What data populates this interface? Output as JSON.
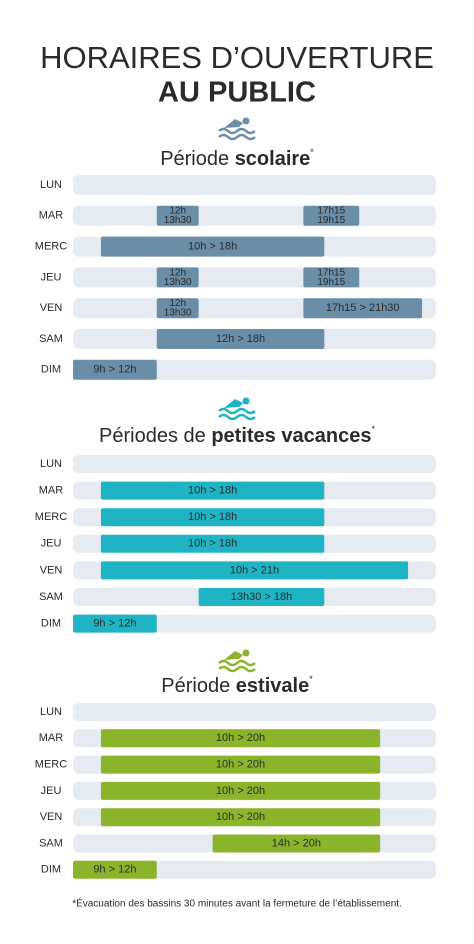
{
  "header": {
    "line1": "HORAIRES D’OUVERTURE",
    "line2": "AU PUBLIC"
  },
  "xlim": [
    9,
    22
  ],
  "sections": [
    {
      "title_light": "Période",
      "title_bold": "scolaire",
      "title_mark": "*",
      "color": "#6b8ea8",
      "rows": [
        {
          "day": "LUN",
          "ranges": []
        },
        {
          "day": "MAR",
          "ranges": [
            {
              "start": 12,
              "end": 13.5,
              "label": [
                "12h",
                "13h30"
              ]
            },
            {
              "start": 17.25,
              "end": 19.25,
              "label": [
                "17h15",
                "19h15"
              ]
            }
          ]
        },
        {
          "day": "MERC",
          "ranges": [
            {
              "start": 10,
              "end": 18,
              "label": [
                "10h > 18h"
              ]
            }
          ]
        },
        {
          "day": "JEU",
          "ranges": [
            {
              "start": 12,
              "end": 13.5,
              "label": [
                "12h",
                "13h30"
              ]
            },
            {
              "start": 17.25,
              "end": 19.25,
              "label": [
                "17h15",
                "19h15"
              ]
            }
          ]
        },
        {
          "day": "VEN",
          "ranges": [
            {
              "start": 12,
              "end": 13.5,
              "label": [
                "12h",
                "13h30"
              ]
            },
            {
              "start": 17.25,
              "end": 21.5,
              "label": [
                "17h15 > 21h30"
              ]
            }
          ]
        },
        {
          "day": "SAM",
          "ranges": [
            {
              "start": 12,
              "end": 18,
              "label": [
                "12h > 18h"
              ]
            }
          ]
        },
        {
          "day": "DIM",
          "ranges": [
            {
              "start": 9,
              "end": 12,
              "label": [
                "9h > 12h"
              ]
            }
          ]
        }
      ]
    },
    {
      "title_light": "Périodes de",
      "title_bold": "petites vacances",
      "title_mark": "*",
      "color": "#1eb4c4",
      "rows": [
        {
          "day": "LUN",
          "ranges": []
        },
        {
          "day": "MAR",
          "ranges": [
            {
              "start": 10,
              "end": 18,
              "label": [
                "10h > 18h"
              ]
            }
          ]
        },
        {
          "day": "MERC",
          "ranges": [
            {
              "start": 10,
              "end": 18,
              "label": [
                "10h > 18h"
              ]
            }
          ]
        },
        {
          "day": "JEU",
          "ranges": [
            {
              "start": 10,
              "end": 18,
              "label": [
                "10h > 18h"
              ]
            }
          ]
        },
        {
          "day": "VEN",
          "ranges": [
            {
              "start": 10,
              "end": 21,
              "label": [
                "10h > 21h"
              ]
            }
          ]
        },
        {
          "day": "SAM",
          "ranges": [
            {
              "start": 13.5,
              "end": 18,
              "label": [
                "13h30 > 18h"
              ]
            }
          ]
        },
        {
          "day": "DIM",
          "ranges": [
            {
              "start": 9,
              "end": 12,
              "label": [
                "9h > 12h"
              ]
            }
          ]
        }
      ]
    },
    {
      "title_light": "Période",
      "title_bold": "estivale",
      "title_mark": "*",
      "color": "#8cb42b",
      "rows": [
        {
          "day": "LUN",
          "ranges": []
        },
        {
          "day": "MAR",
          "ranges": [
            {
              "start": 10,
              "end": 20,
              "label": [
                "10h > 20h"
              ]
            }
          ]
        },
        {
          "day": "MERC",
          "ranges": [
            {
              "start": 10,
              "end": 20,
              "label": [
                "10h > 20h"
              ]
            }
          ]
        },
        {
          "day": "JEU",
          "ranges": [
            {
              "start": 10,
              "end": 20,
              "label": [
                "10h > 20h"
              ]
            }
          ]
        },
        {
          "day": "VEN",
          "ranges": [
            {
              "start": 10,
              "end": 20,
              "label": [
                "10h > 20h"
              ]
            }
          ]
        },
        {
          "day": "SAM",
          "ranges": [
            {
              "start": 14,
              "end": 20,
              "label": [
                "14h > 20h"
              ]
            }
          ]
        },
        {
          "day": "DIM",
          "ranges": [
            {
              "start": 9,
              "end": 12,
              "label": [
                "9h > 12h"
              ]
            }
          ]
        }
      ]
    }
  ],
  "footnote": "*Évacuation des bassins 30 minutes avant la fermeture de l’établissement."
}
